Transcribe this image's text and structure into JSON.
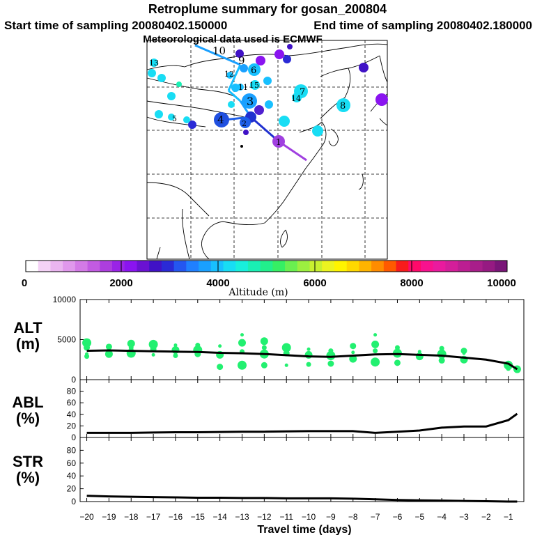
{
  "header": {
    "title": "Retroplume summary for gosan_200804",
    "start_label": "Start time of sampling 20080402.150000",
    "end_label": "End time of sampling 20080402.180000",
    "met_label": "Meteorological data used is ECMWF"
  },
  "colorbar": {
    "colors": [
      "#ffffff",
      "#f4d2f6",
      "#eab5f0",
      "#e098ec",
      "#d37ae6",
      "#c25be2",
      "#ad3ede",
      "#9a24e6",
      "#8a14f0",
      "#6a12d2",
      "#4012c6",
      "#2a2ad6",
      "#2456f0",
      "#2080ff",
      "#1aa0ff",
      "#18c0ff",
      "#18ddf4",
      "#18f0dc",
      "#1af0b4",
      "#22f08c",
      "#36f064",
      "#6af050",
      "#9cf040",
      "#c8f030",
      "#ecf420",
      "#fff400",
      "#ffd800",
      "#ffb400",
      "#ff8c00",
      "#ff5a00",
      "#f81c1c",
      "#ff0a6a",
      "#f8128e",
      "#ea1a9e",
      "#d41e9a",
      "#bc1e92",
      "#a81e8a",
      "#961a82",
      "#7a1678"
    ],
    "tick_labels": [
      "0",
      "2000",
      "4000",
      "6000",
      "8000",
      "10000"
    ],
    "axis_label": "Altitude (m)"
  },
  "map": {
    "plume_labels": [
      "10",
      "9",
      "8",
      "7",
      "6",
      "5",
      "4",
      "3",
      "2",
      "1",
      "13",
      "12",
      "11",
      "14",
      "15"
    ]
  },
  "chart_data": [
    {
      "type": "line",
      "panel": "ALT",
      "ylabel": "ALT\n(m)",
      "ylabel_line1": "ALT",
      "ylabel_line2": "(m)",
      "ylim": [
        0,
        10000
      ],
      "yticks": [
        "10000",
        "5000",
        "0"
      ],
      "ytick_values": [
        10000,
        5000,
        0
      ],
      "x": [
        -20,
        -19,
        -18,
        -17,
        -16,
        -15,
        -14,
        -13,
        -12,
        -11,
        -10,
        -9,
        -8,
        -7,
        -6,
        -5,
        -4,
        -3,
        -2,
        -1,
        -0.6
      ],
      "series": [
        {
          "name": "mean altitude",
          "values": [
            3600,
            3650,
            3600,
            3550,
            3500,
            3450,
            3350,
            3300,
            3200,
            3050,
            2900,
            2850,
            3000,
            3150,
            3200,
            3100,
            3000,
            2750,
            2500,
            2000,
            1300
          ]
        }
      ],
      "scatter": {
        "name": "plume altitudes",
        "points": [
          [
            -20,
            3200
          ],
          [
            -20,
            4000
          ],
          [
            -20,
            4600
          ],
          [
            -20,
            2900
          ],
          [
            -19,
            3200
          ],
          [
            -19,
            3600
          ],
          [
            -19,
            4100
          ],
          [
            -18,
            3300
          ],
          [
            -18,
            4000
          ],
          [
            -18,
            4500
          ],
          [
            -17,
            3100
          ],
          [
            -17,
            3800
          ],
          [
            -17,
            4400
          ],
          [
            -16,
            3000
          ],
          [
            -16,
            3700
          ],
          [
            -16,
            4300
          ],
          [
            -15,
            3200
          ],
          [
            -15,
            3700
          ],
          [
            -15,
            4300
          ],
          [
            -14,
            3100
          ],
          [
            -14,
            4200
          ],
          [
            -14,
            1600
          ],
          [
            -13,
            1800
          ],
          [
            -13,
            3500
          ],
          [
            -13,
            4600
          ],
          [
            -13,
            5600
          ],
          [
            -12,
            1800
          ],
          [
            -12,
            3200
          ],
          [
            -12,
            4000
          ],
          [
            -12,
            4800
          ],
          [
            -11,
            1800
          ],
          [
            -11,
            3300
          ],
          [
            -11,
            4000
          ],
          [
            -10,
            1900
          ],
          [
            -10,
            3100
          ],
          [
            -10,
            3800
          ],
          [
            -9,
            2000
          ],
          [
            -9,
            3000
          ],
          [
            -9,
            3600
          ],
          [
            -8,
            2600
          ],
          [
            -8,
            3400
          ],
          [
            -8,
            4200
          ],
          [
            -7,
            2200
          ],
          [
            -7,
            3600
          ],
          [
            -7,
            4400
          ],
          [
            -7,
            5600
          ],
          [
            -6,
            2100
          ],
          [
            -6,
            3300
          ],
          [
            -6,
            4000
          ],
          [
            -5,
            2900
          ],
          [
            -5,
            3500
          ],
          [
            -4,
            2400
          ],
          [
            -4,
            3200
          ],
          [
            -4,
            3900
          ],
          [
            -3,
            2500
          ],
          [
            -3,
            3300
          ],
          [
            -3,
            3600
          ],
          [
            -1,
            1800
          ],
          [
            -1,
            1400
          ],
          [
            -0.6,
            1300
          ]
        ]
      }
    },
    {
      "type": "line",
      "panel": "ABL",
      "ylabel_line1": "ABL",
      "ylabel_line2": "(%)",
      "ylim": [
        0,
        100
      ],
      "yticks": [
        "80",
        "60",
        "40",
        "20",
        "0"
      ],
      "ytick_values": [
        80,
        60,
        40,
        20,
        0
      ],
      "x": [
        -20,
        -19,
        -18,
        -17,
        -16,
        -15,
        -14,
        -13,
        -12,
        -11,
        -10,
        -9,
        -8,
        -7,
        -6,
        -5,
        -4,
        -3,
        -2,
        -1,
        -0.6
      ],
      "series": [
        {
          "name": "ABL fraction",
          "values": [
            8,
            8,
            8,
            8.5,
            9,
            9,
            9.5,
            10,
            10,
            10.5,
            11,
            11,
            11,
            8,
            10,
            12,
            17,
            19,
            19,
            30,
            41
          ]
        }
      ]
    },
    {
      "type": "line",
      "panel": "STR",
      "ylabel_line1": "STR",
      "ylabel_line2": "(%)",
      "ylim": [
        0,
        100
      ],
      "yticks": [
        "80",
        "60",
        "40",
        "20",
        "0"
      ],
      "ytick_values": [
        80,
        60,
        40,
        20,
        0
      ],
      "x": [
        -20,
        -19,
        -18,
        -17,
        -16,
        -15,
        -14,
        -13,
        -12,
        -11,
        -10,
        -9,
        -8,
        -7,
        -6,
        -5,
        -4,
        -3,
        -2,
        -1,
        -0.6
      ],
      "series": [
        {
          "name": "stratosphere fraction",
          "values": [
            9,
            8,
            7.5,
            7,
            6.5,
            6,
            6,
            5.5,
            5.5,
            5,
            5,
            5,
            4.5,
            3.5,
            2.5,
            2,
            1.5,
            1,
            0.5,
            0,
            0
          ]
        }
      ],
      "xlabel": "Travel time (days)",
      "xtick_values": [
        -20,
        -19,
        -18,
        -17,
        -16,
        -15,
        -14,
        -13,
        -12,
        -11,
        -10,
        -9,
        -8,
        -7,
        -6,
        -5,
        -4,
        -3,
        -2,
        -1
      ],
      "xticks": [
        "−20",
        "−19",
        "−18",
        "−17",
        "−16",
        "−15",
        "−14",
        "−13",
        "−12",
        "−11",
        "−10",
        "−9",
        "−8",
        "−7",
        "−6",
        "−5",
        "−4",
        "−3",
        "−2",
        "−1"
      ]
    }
  ]
}
